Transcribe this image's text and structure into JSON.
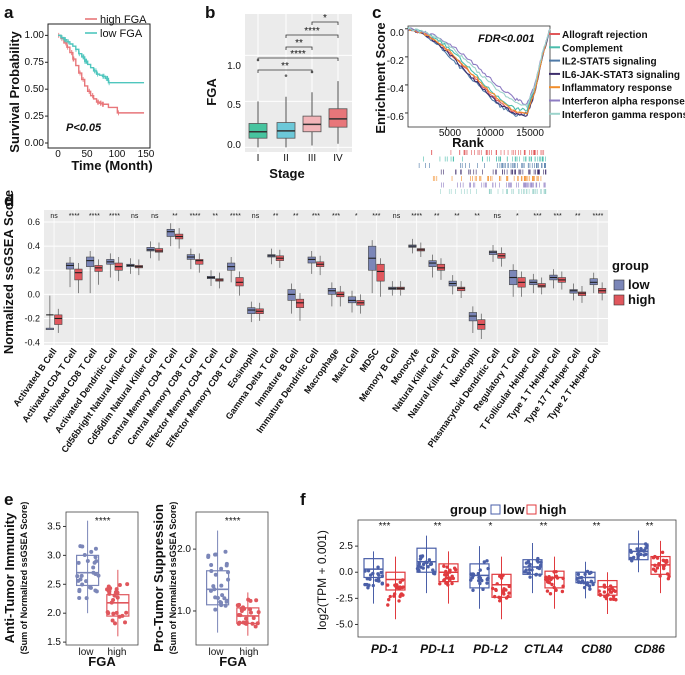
{
  "panel_labels": [
    "a",
    "b",
    "c",
    "d",
    "e",
    "f"
  ],
  "chart_data": [
    {
      "type": "line",
      "panel": "a",
      "title": "",
      "xlabel": "Time (Month)",
      "ylabel": "Survival Probability",
      "xlim": [
        0,
        150
      ],
      "ylim": [
        0,
        1.05
      ],
      "xticks": [
        "0",
        "50",
        "100",
        "150"
      ],
      "yticks": [
        "0.00",
        "0.25",
        "0.50",
        "0.75",
        "1.00"
      ],
      "annotation": "P<0.05",
      "series": [
        {
          "name": "high FGA",
          "color": "#E8767A",
          "x": [
            0,
            5,
            10,
            15,
            20,
            25,
            30,
            35,
            40,
            45,
            50,
            55,
            60,
            65,
            70,
            75,
            85,
            100,
            145
          ],
          "y": [
            1.0,
            0.97,
            0.93,
            0.89,
            0.84,
            0.78,
            0.72,
            0.65,
            0.59,
            0.53,
            0.48,
            0.44,
            0.41,
            0.38,
            0.37,
            0.36,
            0.33,
            0.28,
            0.28
          ]
        },
        {
          "name": "low FGA",
          "color": "#4FC6BE",
          "x": [
            0,
            5,
            10,
            15,
            20,
            25,
            30,
            35,
            40,
            45,
            50,
            55,
            60,
            65,
            70,
            75,
            80,
            85,
            145
          ],
          "y": [
            1.0,
            0.98,
            0.96,
            0.94,
            0.92,
            0.9,
            0.87,
            0.83,
            0.8,
            0.76,
            0.73,
            0.7,
            0.67,
            0.64,
            0.63,
            0.62,
            0.6,
            0.56,
            0.56
          ]
        }
      ]
    },
    {
      "type": "box",
      "panel": "b",
      "xlabel": "Stage",
      "ylabel": "FGA",
      "ylim": [
        -0.05,
        1.45
      ],
      "yticks": [
        "0.0",
        "0.5",
        "1.0"
      ],
      "categories": [
        "I",
        "II",
        "III",
        "IV"
      ],
      "colors": [
        "#47C49F",
        "#6CC8D8",
        "#F2B4B8",
        "#E8767A"
      ],
      "boxes": [
        {
          "q1": 0.1,
          "median": 0.17,
          "q3": 0.26,
          "lo": 0.0,
          "hi": 0.5,
          "outliers": [
            0.95
          ]
        },
        {
          "q1": 0.1,
          "median": 0.18,
          "q3": 0.27,
          "lo": 0.0,
          "hi": 0.55,
          "outliers": [
            0.78
          ]
        },
        {
          "q1": 0.17,
          "median": 0.25,
          "q3": 0.34,
          "lo": 0.02,
          "hi": 0.6,
          "outliers": [
            0.82
          ]
        },
        {
          "q1": 0.22,
          "median": 0.31,
          "q3": 0.42,
          "lo": 0.04,
          "hi": 0.72,
          "outliers": []
        }
      ],
      "brackets": [
        {
          "from": 2,
          "to": 3,
          "label": "*"
        },
        {
          "from": 1,
          "to": 3,
          "label": "****"
        },
        {
          "from": 1,
          "to": 2,
          "label": "**"
        },
        {
          "from": 0,
          "to": 3,
          "label": "****"
        },
        {
          "from": 0,
          "to": 2,
          "label": "**"
        }
      ]
    },
    {
      "type": "line",
      "panel": "c",
      "xlabel": "Rank",
      "ylabel": "Enrichment Score",
      "xlim": [
        0,
        18500
      ],
      "ylim": [
        -0.7,
        0.02
      ],
      "xticks": [
        "5000",
        "10000",
        "15000"
      ],
      "yticks": [
        "0.0",
        "-0.2",
        "-0.4",
        "-0.6"
      ],
      "annotation": "FDR<0.001",
      "series": [
        {
          "name": "Allograft rejection",
          "color": "#E15759",
          "x": [
            0,
            2000,
            4000,
            6000,
            8000,
            10000,
            12000,
            14000,
            15500,
            16500,
            17500,
            18500
          ],
          "y": [
            0,
            -0.03,
            -0.1,
            -0.2,
            -0.31,
            -0.43,
            -0.53,
            -0.6,
            -0.6,
            -0.45,
            -0.2,
            0
          ]
        },
        {
          "name": "Complement",
          "color": "#4ABDAC",
          "x": [
            0,
            2000,
            4000,
            6000,
            8000,
            10000,
            12000,
            14000,
            15500,
            16500,
            17500,
            18500
          ],
          "y": [
            0,
            -0.02,
            -0.08,
            -0.17,
            -0.28,
            -0.4,
            -0.5,
            -0.57,
            -0.58,
            -0.42,
            -0.19,
            0
          ]
        },
        {
          "name": "IL2-STAT5 signaling",
          "color": "#4E79A7",
          "x": [
            0,
            2000,
            4000,
            6000,
            8000,
            10000,
            12000,
            14000,
            15500,
            16500,
            17500,
            18500
          ],
          "y": [
            0,
            -0.04,
            -0.12,
            -0.23,
            -0.34,
            -0.45,
            -0.55,
            -0.62,
            -0.6,
            -0.44,
            -0.2,
            0
          ]
        },
        {
          "name": "IL6-JAK-STAT3 signaling",
          "color": "#3D2D6B",
          "x": [
            0,
            2000,
            4000,
            6000,
            8000,
            10000,
            12000,
            14000,
            15500,
            16500,
            17500,
            18500
          ],
          "y": [
            0,
            -0.03,
            -0.11,
            -0.21,
            -0.33,
            -0.44,
            -0.54,
            -0.61,
            -0.62,
            -0.46,
            -0.21,
            0
          ]
        },
        {
          "name": "Inflammatory response",
          "color": "#F28E2B",
          "x": [
            0,
            2000,
            4000,
            6000,
            8000,
            10000,
            12000,
            14000,
            15500,
            16500,
            17500,
            18500
          ],
          "y": [
            0,
            -0.03,
            -0.1,
            -0.19,
            -0.3,
            -0.41,
            -0.51,
            -0.59,
            -0.61,
            -0.45,
            -0.2,
            0
          ]
        },
        {
          "name": "Interferon alpha response",
          "color": "#8E7CC3",
          "x": [
            0,
            2000,
            4000,
            6000,
            8000,
            10000,
            12000,
            14000,
            15500,
            16500,
            17500,
            18500
          ],
          "y": [
            0,
            -0.02,
            -0.06,
            -0.13,
            -0.22,
            -0.32,
            -0.42,
            -0.5,
            -0.54,
            -0.4,
            -0.18,
            0
          ]
        },
        {
          "name": "Interferon gamma response",
          "color": "#9BD3CB",
          "x": [
            0,
            2000,
            4000,
            6000,
            8000,
            10000,
            12000,
            14000,
            15500,
            16500,
            17500,
            18500
          ],
          "y": [
            0,
            -0.02,
            -0.07,
            -0.15,
            -0.25,
            -0.35,
            -0.45,
            -0.52,
            -0.55,
            -0.41,
            -0.18,
            0
          ]
        }
      ]
    },
    {
      "type": "box",
      "panel": "d",
      "ylabel": "Normalized ssGSEA Score",
      "ylim": [
        -0.42,
        0.7
      ],
      "yticks": [
        "-0.4",
        "-0.2",
        "0.0",
        "0.2",
        "0.4",
        "0.6"
      ],
      "legend_title": "group",
      "legend": [
        "low",
        "high"
      ],
      "colors": {
        "low": "#7B86B8",
        "high": "#E0575D"
      },
      "categories": [
        "Activated B Cell",
        "Activated CD4 T Cell",
        "Activated CD8 T Cell",
        "Activated Dendritic Cell",
        "Cd56bright Natural Killer Cell",
        "Cd56dim Natural Killer Cell",
        "Central Memory CD4 T Cell",
        "Central Memory CD8 T Cell",
        "Effector Memory CD4 T Cell",
        "Effector Memory CD8 T Cell",
        "Eosinophil",
        "Gamma Delta T Cell",
        "Immature B Cell",
        "Immature Dendritic Cell",
        "Macrophage",
        "Mast Cell",
        "MDSC",
        "Memory B Cell",
        "Monocyte",
        "Natural Killer Cell",
        "Natural Killer T Cell",
        "Neutrophil",
        "Plasmacytoid Dendritic Cell",
        "Regulatory T Cell",
        "T Follicular Helper Cell",
        "Type 1 T Helper Cell",
        "Type 17 T Helper Cell",
        "Type 2 T Helper Cell"
      ],
      "significance": [
        "ns",
        "****",
        "****",
        "****",
        "ns",
        "ns",
        "**",
        "****",
        "**",
        "****",
        "ns",
        "**",
        "**",
        "***",
        "***",
        "*",
        "***",
        "ns",
        "****",
        "**",
        "**",
        "**",
        "ns",
        "*",
        "***",
        "***",
        "**",
        "****"
      ],
      "low": [
        [
          -0.25,
          -0.17,
          -0.28,
          -0.06
        ],
        [
          0.21,
          0.24,
          0.26,
          0.1
        ],
        [
          0.23,
          0.28,
          0.31,
          0.05
        ],
        [
          0.25,
          0.27,
          0.29,
          0.18
        ],
        [
          0.23,
          0.24,
          0.25,
          0.21
        ],
        [
          0.36,
          0.37,
          0.39,
          0.34
        ],
        [
          0.48,
          0.52,
          0.54,
          0.44
        ],
        [
          0.29,
          0.31,
          0.33,
          0.25
        ],
        [
          0.13,
          0.14,
          0.15,
          0.11
        ],
        [
          0.2,
          0.23,
          0.26,
          0.14
        ],
        [
          -0.16,
          -0.13,
          -0.11,
          -0.19
        ],
        [
          0.31,
          0.32,
          0.33,
          0.29
        ],
        [
          -0.05,
          0.0,
          0.04,
          -0.12
        ],
        [
          0.26,
          0.29,
          0.31,
          0.21
        ],
        [
          0.0,
          0.03,
          0.05,
          -0.06
        ],
        [
          -0.07,
          -0.05,
          -0.02,
          -0.11
        ],
        [
          0.2,
          0.3,
          0.4,
          0.05
        ],
        [
          0.04,
          0.05,
          0.06,
          0.03
        ],
        [
          0.39,
          0.4,
          0.41,
          0.38
        ],
        [
          0.23,
          0.26,
          0.28,
          0.18
        ],
        [
          0.07,
          0.09,
          0.11,
          0.04
        ],
        [
          -0.22,
          -0.18,
          -0.15,
          -0.28
        ],
        [
          0.33,
          0.35,
          0.36,
          0.31
        ],
        [
          0.08,
          0.14,
          0.2,
          0.02
        ],
        [
          0.08,
          0.1,
          0.12,
          0.05
        ],
        [
          0.12,
          0.14,
          0.16,
          0.09
        ],
        [
          0.01,
          0.03,
          0.04,
          -0.01
        ],
        [
          0.08,
          0.1,
          0.13,
          0.05
        ]
      ],
      "high": [
        [
          -0.25,
          -0.2,
          -0.17,
          -0.28
        ],
        [
          0.12,
          0.18,
          0.21,
          0.05
        ],
        [
          0.19,
          0.22,
          0.24,
          0.12
        ],
        [
          0.2,
          0.23,
          0.26,
          0.15
        ],
        [
          0.22,
          0.23,
          0.24,
          0.2
        ],
        [
          0.35,
          0.36,
          0.38,
          0.32
        ],
        [
          0.46,
          0.48,
          0.5,
          0.42
        ],
        [
          0.25,
          0.28,
          0.29,
          0.22
        ],
        [
          0.11,
          0.12,
          0.13,
          0.09
        ],
        [
          0.07,
          0.1,
          0.14,
          0.03
        ],
        [
          -0.16,
          -0.14,
          -0.12,
          -0.18
        ],
        [
          0.28,
          0.3,
          0.32,
          0.26
        ],
        [
          -0.11,
          -0.07,
          -0.04,
          -0.18
        ],
        [
          0.23,
          0.25,
          0.27,
          0.2
        ],
        [
          -0.02,
          0.0,
          0.02,
          -0.06
        ],
        [
          -0.09,
          -0.07,
          -0.05,
          -0.12
        ],
        [
          0.11,
          0.19,
          0.25,
          0.02
        ],
        [
          0.04,
          0.05,
          0.06,
          0.03
        ],
        [
          0.36,
          0.37,
          0.38,
          0.35
        ],
        [
          0.2,
          0.22,
          0.25,
          0.16
        ],
        [
          0.03,
          0.05,
          0.06,
          0.01
        ],
        [
          -0.29,
          -0.25,
          -0.21,
          -0.33
        ],
        [
          0.3,
          0.32,
          0.34,
          0.27
        ],
        [
          0.06,
          0.1,
          0.14,
          0.02
        ],
        [
          0.06,
          0.07,
          0.09,
          0.04
        ],
        [
          0.1,
          0.12,
          0.14,
          0.08
        ],
        [
          -0.01,
          0.01,
          0.02,
          -0.03
        ],
        [
          0.01,
          0.03,
          0.05,
          -0.01
        ]
      ]
    },
    {
      "type": "box",
      "panel": "e-left",
      "xlabel": "FGA",
      "ylabel": "Anti-Tumor Immunity",
      "ylabel2": "(Sum of Normalized ssGSEA Score)",
      "ylim": [
        1.45,
        3.75
      ],
      "yticks": [
        "1.5",
        "2.0",
        "2.5",
        "3.0",
        "3.5"
      ],
      "categories": [
        "low",
        "high"
      ],
      "colors": [
        "#7B86B8",
        "#E0575D"
      ],
      "significance": "****",
      "boxes": [
        {
          "q1": 2.48,
          "median": 2.7,
          "q3": 3.0,
          "lo": 2.0,
          "hi": 3.6
        },
        {
          "q1": 1.95,
          "median": 2.18,
          "q3": 2.32,
          "lo": 1.6,
          "hi": 2.75
        }
      ]
    },
    {
      "type": "box",
      "panel": "e-right",
      "xlabel": "FGA",
      "ylabel": "Pro-Tumor Suppression",
      "ylabel2": "(Sum of Normalized ssGSEA Score)",
      "ylim": [
        0.45,
        2.6
      ],
      "yticks": [
        "1.0",
        "2.0"
      ],
      "categories": [
        "low",
        "high"
      ],
      "colors": [
        "#7B86B8",
        "#E0575D"
      ],
      "significance": "****",
      "boxes": [
        {
          "q1": 1.1,
          "median": 1.35,
          "q3": 1.65,
          "lo": 0.65,
          "hi": 2.3
        },
        {
          "q1": 0.8,
          "median": 0.92,
          "q3": 1.05,
          "lo": 0.6,
          "hi": 1.3
        }
      ]
    },
    {
      "type": "box",
      "panel": "f",
      "ylabel": "log2(TPM + 0.001)",
      "ylim": [
        -6.2,
        5.0
      ],
      "yticks": [
        "-5.0",
        "-2.5",
        "0.0",
        "2.5"
      ],
      "legend_title": "group",
      "legend": [
        "low",
        "high"
      ],
      "colors": {
        "low": "#4A5FA8",
        "high": "#E03A3E"
      },
      "categories": [
        "PD-1",
        "PD-L1",
        "PD-L2",
        "CTLA4",
        "CD80",
        "CD86"
      ],
      "significance": [
        "***",
        "**",
        "*",
        "**",
        "**",
        "**"
      ],
      "low": [
        [
          -0.5,
          0.3,
          1.3,
          -3.0,
          2.0
        ],
        [
          0.0,
          1.0,
          2.3,
          -2.0,
          3.5
        ],
        [
          -1.5,
          -0.3,
          0.8,
          -3.5,
          2.5
        ],
        [
          -0.2,
          0.5,
          1.2,
          -2.0,
          2.8
        ],
        [
          -1.0,
          -0.5,
          0.0,
          -2.5,
          1.0
        ],
        [
          1.2,
          2.0,
          2.7,
          0.0,
          4.0
        ]
      ],
      "high": [
        [
          -1.7,
          -0.7,
          0.0,
          -4.5,
          1.5
        ],
        [
          -0.9,
          0.0,
          0.8,
          -3.0,
          2.0
        ],
        [
          -2.4,
          -1.2,
          -0.2,
          -4.5,
          1.5
        ],
        [
          -1.5,
          -0.5,
          0.1,
          -3.5,
          1.5
        ],
        [
          -2.2,
          -1.4,
          -0.8,
          -4.0,
          0.0
        ],
        [
          -0.2,
          0.7,
          1.5,
          -2.0,
          3.0
        ]
      ]
    }
  ]
}
